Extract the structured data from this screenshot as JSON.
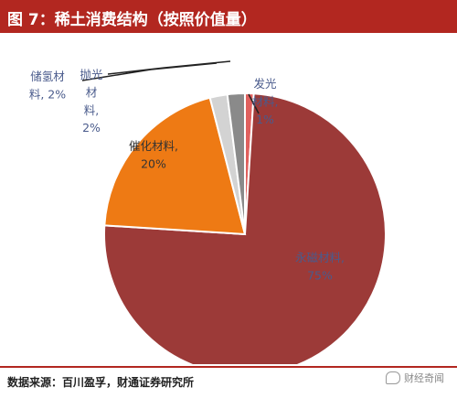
{
  "header": {
    "title": "图 7：稀土消费结构（按照价值量）"
  },
  "footer": {
    "source": "数据来源：百川盈孚，财通证券研究所",
    "watermark": "财经奇闻"
  },
  "chart_data": {
    "type": "pie",
    "title": "图 7：稀土消费结构（按照价值量）",
    "unit": "%",
    "slices": [
      {
        "key": "faguang",
        "name": "发光材料",
        "value": 1,
        "label_lines": [
          "发光",
          "材料,",
          "1%"
        ],
        "color": "#e0605e"
      },
      {
        "key": "yongci",
        "name": "永磁材料",
        "value": 75,
        "label_lines": [
          "永磁材料,",
          "75%"
        ],
        "color": "#9c3a38"
      },
      {
        "key": "cuihua",
        "name": "催化材料",
        "value": 20,
        "label_lines": [
          "催化材料,",
          "20%"
        ],
        "color": "#ee7a14"
      },
      {
        "key": "chuqing",
        "name": "储氢材料",
        "value": 2,
        "label_lines": [
          "储氢材",
          "料, 2%"
        ],
        "color": "#d3d3d3"
      },
      {
        "key": "paoguang",
        "name": "抛光材料",
        "value": 2,
        "label_lines": [
          "抛光",
          "材",
          "料,",
          "2%"
        ],
        "color": "#8a8a8a"
      }
    ]
  }
}
